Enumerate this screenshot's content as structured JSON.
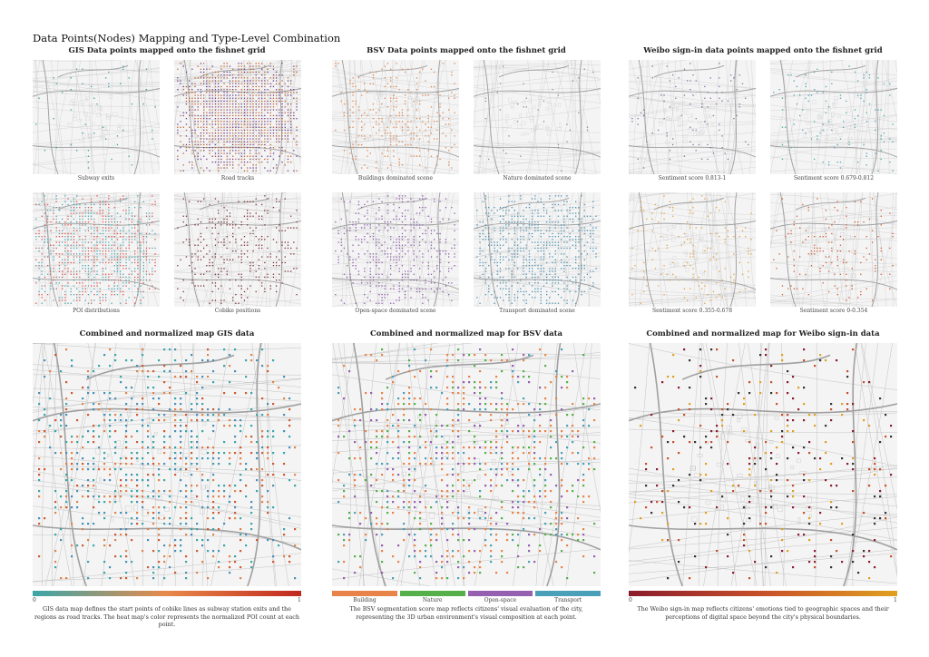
{
  "title": "Data Points(Nodes) Mapping and Type-Level Combination",
  "groups": [
    {
      "title": "GIS Data points mapped onto the fishnet grid",
      "maps": [
        {
          "caption": "Subway exits",
          "color": "#3a9aa0",
          "density": 0.03
        },
        {
          "caption": "Road tracks",
          "color": "#c0602c",
          "density": 0.75,
          "color2": "#6a3d8a"
        },
        {
          "caption": "POI distributions",
          "color": "#d9534f",
          "density": 0.55,
          "color2": "#4aa6b0"
        },
        {
          "caption": "Cobike positions",
          "color": "#7a2e35",
          "density": 0.25
        }
      ]
    },
    {
      "title": "BSV Data points mapped onto the fishnet grid",
      "maps": [
        {
          "caption": "Buildings dominated scene",
          "color": "#e0844a",
          "density": 0.2
        },
        {
          "caption": "Nature dominated scene",
          "color": "#8a8a8a",
          "density": 0.04
        },
        {
          "caption": "Open-space dominated scene",
          "color": "#8a5aa8",
          "density": 0.3
        },
        {
          "caption": "Transport dominated scene",
          "color": "#4a90b0",
          "density": 0.45
        }
      ]
    },
    {
      "title": "Weibo sign-in data points mapped onto the fishnet grid",
      "maps": [
        {
          "caption": "Sentiment score 0.813-1",
          "color": "#8a6aa0",
          "density": 0.06
        },
        {
          "caption": "Sentiment score 0.679-0.812",
          "color": "#4aa6b0",
          "density": 0.08
        },
        {
          "caption": "Sentiment score 0.355-0.678",
          "color": "#e0a040",
          "density": 0.1
        },
        {
          "caption": "Sentiment score 0-0.354",
          "color": "#d05a30",
          "density": 0.1
        }
      ]
    }
  ],
  "combined": [
    {
      "title": "Combined and normalized map GIS data",
      "legend_type": "gradient",
      "colors": [
        "#3aa6a8",
        "#e8894a",
        "#c0281e"
      ],
      "tick_min": "0",
      "tick_max": "1",
      "description": "GIS data map defines the start points of cobike lines as subway station exits and the regions as road tracks. The heat map's color represents the normalized POI count at each point.",
      "dot_colors": [
        "#3aa6a8",
        "#e0844a",
        "#d05a30",
        "#4a8fb8"
      ]
    },
    {
      "title": "Combined and normalized map for BSV data",
      "legend_type": "categorical",
      "categories": [
        {
          "label": "Building",
          "color": "#e8844a"
        },
        {
          "label": "Nature",
          "color": "#55b04a"
        },
        {
          "label": "Open-space",
          "color": "#9560b0"
        },
        {
          "label": "Transport",
          "color": "#4aa0b8"
        }
      ],
      "description": "The BSV segmentation score map reflects citizens' visual evaluation of the city, representing the 3D urban environment's visual composition at each point.",
      "dot_colors": [
        "#e8844a",
        "#55b04a",
        "#9560b0",
        "#4aa0b8",
        "#e8844a"
      ]
    },
    {
      "title": "Combined and normalized map for Weibo sign-in data",
      "legend_type": "gradient",
      "colors": [
        "#8a1c2c",
        "#c8502a",
        "#e0a020"
      ],
      "tick_min": "0",
      "tick_max": "1",
      "description": "The Weibo sign-in map reflects citizens' emotions tied to geographic spaces and their perceptions of digital space beyond the city's physical boundaries.",
      "dot_colors": [
        "#8a1c2c",
        "#c8502a",
        "#e0a020",
        "#333333"
      ]
    }
  ]
}
